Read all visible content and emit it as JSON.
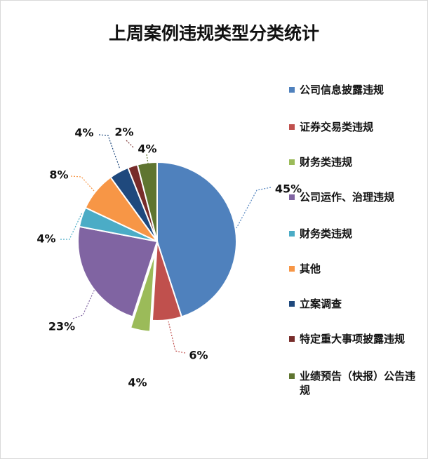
{
  "chart_data": {
    "type": "pie",
    "title": "上周案例违规类型分类统计",
    "slices": [
      {
        "name": "公司信息披露违规",
        "value": 45,
        "label": "45%",
        "color": "#4F81BD"
      },
      {
        "name": "证券交易类违规",
        "value": 6,
        "label": "6%",
        "color": "#C0504D"
      },
      {
        "name": "财务类违规",
        "value": 4,
        "label": "4%",
        "color": "#9BBB59"
      },
      {
        "name": "公司运作、治理违规",
        "value": 23,
        "label": "23%",
        "color": "#8064A2"
      },
      {
        "name": "财务类违规",
        "value": 4,
        "label": "4%",
        "color": "#4BACC6"
      },
      {
        "name": "其他",
        "value": 8,
        "label": "8%",
        "color": "#F79646"
      },
      {
        "name": "立案调查",
        "value": 4,
        "label": "4%",
        "color": "#1F497D"
      },
      {
        "name": "特定重大事项披露违规",
        "value": 2,
        "label": "2%",
        "color": "#772C2A"
      },
      {
        "name": "业绩预告（快报）公告违规",
        "value": 4,
        "label": "4%",
        "color": "#5F7530"
      }
    ],
    "legend_position": "right",
    "exploded_slice": "财务类违规"
  }
}
